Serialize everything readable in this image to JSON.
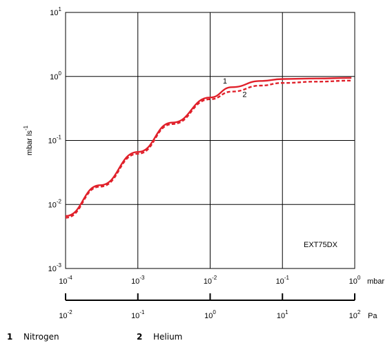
{
  "chart_data": {
    "type": "line",
    "x_scale": "log",
    "y_scale": "log",
    "xlim_mbar": [
      0.0001,
      1
    ],
    "ylim": [
      0.001,
      10
    ],
    "grid": true,
    "ylabel": "mbar  ls",
    "ylabel_exp": "-1",
    "x_unit_primary": "mbar",
    "x_unit_secondary": "Pa",
    "x_ticks_mbar": [
      {
        "base": "10",
        "exp": "-4"
      },
      {
        "base": "10",
        "exp": "-3"
      },
      {
        "base": "10",
        "exp": "-2"
      },
      {
        "base": "10",
        "exp": "-1"
      },
      {
        "base": "10",
        "exp": "0"
      }
    ],
    "x_ticks_pa": [
      {
        "base": "10",
        "exp": "-2"
      },
      {
        "base": "10",
        "exp": "-1"
      },
      {
        "base": "10",
        "exp": "0"
      },
      {
        "base": "10",
        "exp": "1"
      },
      {
        "base": "10",
        "exp": "2"
      }
    ],
    "y_ticks": [
      {
        "base": "10",
        "exp": "-3"
      },
      {
        "base": "10",
        "exp": "-2"
      },
      {
        "base": "10",
        "exp": "-1"
      },
      {
        "base": "10",
        "exp": "0"
      },
      {
        "base": "10",
        "exp": "1"
      }
    ],
    "annotation": "EXT75DX",
    "series": [
      {
        "name": "1",
        "color": "#e0202a",
        "dash": "solid",
        "x": [
          0.0001,
          0.0003,
          0.001,
          0.003,
          0.01,
          0.02,
          0.05,
          0.1,
          0.3,
          0.9
        ],
        "y": [
          0.0066,
          0.02,
          0.066,
          0.19,
          0.47,
          0.68,
          0.85,
          0.91,
          0.93,
          0.95
        ]
      },
      {
        "name": "2",
        "color": "#e0202a",
        "dash": "dashed",
        "x": [
          0.0001,
          0.0003,
          0.001,
          0.003,
          0.01,
          0.02,
          0.05,
          0.1,
          0.3,
          0.9
        ],
        "y": [
          0.0062,
          0.019,
          0.062,
          0.18,
          0.44,
          0.58,
          0.72,
          0.79,
          0.83,
          0.86
        ]
      }
    ],
    "series_labels": [
      {
        "text": "1",
        "x": 0.016,
        "y": 0.78
      },
      {
        "text": "2",
        "x": 0.03,
        "y": 0.48
      }
    ]
  },
  "legend": {
    "items": [
      {
        "num": "1",
        "label": "Nitrogen"
      },
      {
        "num": "2",
        "label": "Helium"
      }
    ]
  }
}
